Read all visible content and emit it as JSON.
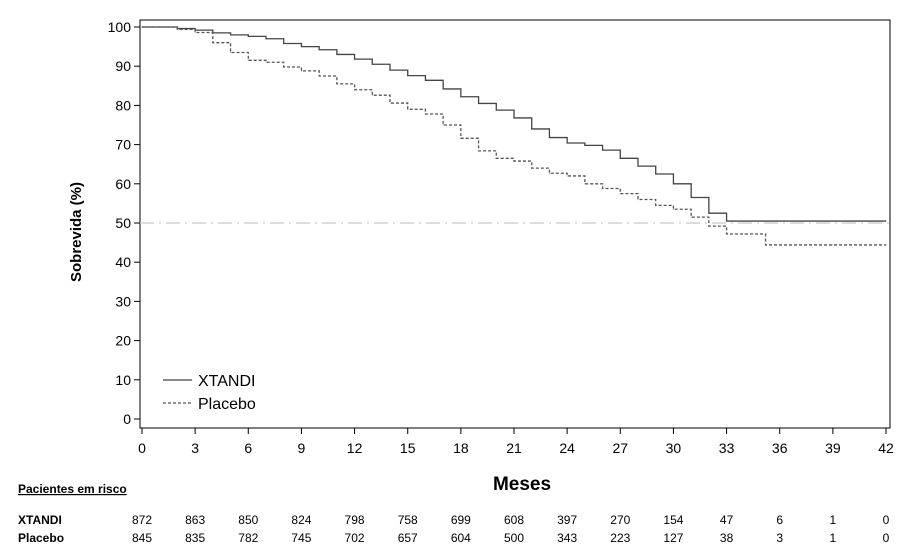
{
  "chart_data": {
    "type": "line",
    "xlabel": "Meses",
    "ylabel": "Sobrevida (%)",
    "xlim": [
      0,
      42
    ],
    "ylim": [
      0,
      100
    ],
    "x_ticks": [
      0,
      3,
      6,
      9,
      12,
      15,
      18,
      21,
      24,
      27,
      30,
      33,
      36,
      39,
      42
    ],
    "y_ticks": [
      0,
      10,
      20,
      30,
      40,
      50,
      60,
      70,
      80,
      90,
      100
    ],
    "reference_line": 50,
    "grid": false,
    "legend_position": "bottom-left",
    "series": [
      {
        "name": "XTANDI",
        "style": "solid",
        "color": "#444444",
        "points": [
          [
            0,
            100
          ],
          [
            1,
            100
          ],
          [
            2,
            99.6
          ],
          [
            3,
            99.2
          ],
          [
            4,
            98.5
          ],
          [
            5,
            98
          ],
          [
            6,
            97.6
          ],
          [
            7,
            97
          ],
          [
            8,
            95.8
          ],
          [
            9,
            95
          ],
          [
            10,
            94.2
          ],
          [
            11,
            93
          ],
          [
            12,
            91.8
          ],
          [
            13,
            90.5
          ],
          [
            14,
            89
          ],
          [
            15,
            87.6
          ],
          [
            16,
            86.4
          ],
          [
            17,
            84.2
          ],
          [
            18,
            82.2
          ],
          [
            19,
            80.5
          ],
          [
            20,
            78.8
          ],
          [
            21,
            76.8
          ],
          [
            22,
            74
          ],
          [
            23,
            71.8
          ],
          [
            24,
            70.4
          ],
          [
            25,
            69.8
          ],
          [
            26,
            68.6
          ],
          [
            27,
            66.5
          ],
          [
            28,
            64.5
          ],
          [
            29,
            62.5
          ],
          [
            30,
            60
          ],
          [
            31,
            56.5
          ],
          [
            32,
            52.5
          ],
          [
            33,
            50.5
          ],
          [
            34,
            50.5
          ],
          [
            36,
            50.5
          ],
          [
            39,
            50.5
          ],
          [
            42,
            50.5
          ]
        ]
      },
      {
        "name": "Placebo",
        "style": "dashed",
        "color": "#555555",
        "points": [
          [
            0,
            100
          ],
          [
            1,
            100
          ],
          [
            2,
            99.4
          ],
          [
            3,
            98.6
          ],
          [
            4,
            96
          ],
          [
            5,
            93.5
          ],
          [
            6,
            91.5
          ],
          [
            7,
            91
          ],
          [
            8,
            89.8
          ],
          [
            9,
            88.8
          ],
          [
            10,
            87.5
          ],
          [
            11,
            85.5
          ],
          [
            12,
            84
          ],
          [
            13,
            82.6
          ],
          [
            14,
            80.6
          ],
          [
            15,
            79
          ],
          [
            16,
            77.8
          ],
          [
            17,
            75
          ],
          [
            18,
            71.6
          ],
          [
            19,
            68.4
          ],
          [
            20,
            66.5
          ],
          [
            21,
            65.8
          ],
          [
            22,
            64
          ],
          [
            23,
            62.7
          ],
          [
            24,
            62
          ],
          [
            25,
            60
          ],
          [
            26,
            58.8
          ],
          [
            27,
            57.5
          ],
          [
            28,
            56
          ],
          [
            29,
            54.5
          ],
          [
            30,
            53.5
          ],
          [
            31,
            51.5
          ],
          [
            32,
            49.2
          ],
          [
            33,
            47.2
          ],
          [
            34,
            47.2
          ],
          [
            35,
            47.2
          ],
          [
            35.2,
            44.4
          ],
          [
            39,
            44.4
          ],
          [
            42,
            44.4
          ]
        ]
      }
    ],
    "risk_table": {
      "title": "Pacientes em risco",
      "rows": [
        {
          "name": "XTANDI",
          "values": [
            "872",
            "863",
            "850",
            "824",
            "798",
            "758",
            "699",
            "608",
            "397",
            "270",
            "154",
            "47",
            "6",
            "1",
            "0"
          ]
        },
        {
          "name": "Placebo",
          "values": [
            "845",
            "835",
            "782",
            "745",
            "702",
            "657",
            "604",
            "500",
            "343",
            "223",
            "127",
            "38",
            "3",
            "1",
            "0"
          ]
        }
      ]
    }
  }
}
